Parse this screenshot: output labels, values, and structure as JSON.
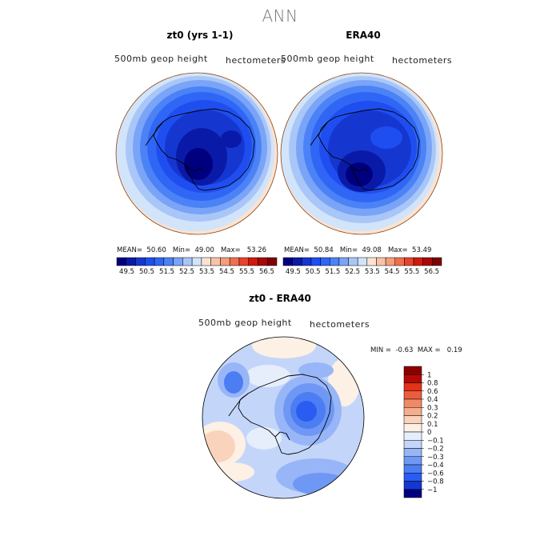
{
  "title": "ANN",
  "palette": {
    "absolute": [
      "#00007f",
      "#0a1aa8",
      "#1537d0",
      "#1f4ef0",
      "#2f66f5",
      "#4b82f6",
      "#7aa4f7",
      "#a9c6f8",
      "#d2e4fa",
      "#fae3d3",
      "#f8c3a6",
      "#f49e7b",
      "#ef6f4e",
      "#e8432a",
      "#d01a0c",
      "#a80808",
      "#7f0000"
    ],
    "difference": [
      "#00007f",
      "#1537d0",
      "#2a5cf2",
      "#4c7df3",
      "#6f98f5",
      "#98b6f7",
      "#c3d6fa",
      "#e6eefc",
      "#fdf0e4",
      "#f9d3bb",
      "#f5ae8b",
      "#f08a66",
      "#eb5d3e",
      "#e23218",
      "#b30a06",
      "#8a0000"
    ],
    "map_edge": "#8b4513"
  },
  "panels": {
    "left": {
      "title": "zt0 (yrs 1-1)",
      "variable": "500mb geop height",
      "units": "hectometers",
      "mean_label": "MEAN=",
      "mean": "50.60",
      "min_label": "Min=",
      "min": "49.00",
      "max_label": "Max=",
      "max": "53.26"
    },
    "right": {
      "title": "ERA40",
      "variable": "500mb geop height",
      "units": "hectometers",
      "mean_label": "MEAN=",
      "mean": "50.84",
      "min_label": "Min=",
      "min": "49.08",
      "max_label": "Max=",
      "max": "53.49"
    },
    "diff": {
      "title": "zt0 - ERA40",
      "variable": "500mb geop height",
      "units": "hectometers",
      "min_label": "MIN =",
      "min": "-0.63",
      "max_label": "MAX =",
      "max": "0.19"
    }
  },
  "chart_data": [
    {
      "type": "heatmap",
      "title": "zt0 (yrs 1-1)",
      "projection": "south polar stereographic",
      "variable": "500mb geop height",
      "units": "hectometers",
      "stats": {
        "mean": 50.6,
        "min": 49.0,
        "max": 53.26
      },
      "colorbar_ticks": [
        "49.5",
        "50.5",
        "51.5",
        "52.5",
        "53.5",
        "54.5",
        "55.5",
        "56.5"
      ],
      "contour_levels": [
        49.5,
        50.0,
        50.5,
        51.0,
        51.5,
        52.0,
        52.5,
        53.0,
        53.5,
        54.0,
        54.5,
        55.0,
        55.5,
        56.0,
        56.5
      ]
    },
    {
      "type": "heatmap",
      "title": "ERA40",
      "projection": "south polar stereographic",
      "variable": "500mb geop height",
      "units": "hectometers",
      "stats": {
        "mean": 50.84,
        "min": 49.08,
        "max": 53.49
      },
      "colorbar_ticks": [
        "49.5",
        "50.5",
        "51.5",
        "52.5",
        "53.5",
        "54.5",
        "55.5",
        "56.5"
      ],
      "contour_levels": [
        49.5,
        50.0,
        50.5,
        51.0,
        51.5,
        52.0,
        52.5,
        53.0,
        53.5,
        54.0,
        54.5,
        55.0,
        55.5,
        56.0,
        56.5
      ]
    },
    {
      "type": "heatmap",
      "title": "zt0 - ERA40",
      "projection": "south polar stereographic",
      "variable": "500mb geop height",
      "units": "hectometers",
      "stats": {
        "min": -0.63,
        "max": 0.19
      },
      "colorbar_ticks": [
        "1",
        "0.8",
        "0.6",
        "0.4",
        "0.3",
        "0.2",
        "0.1",
        "0",
        "−0.1",
        "−0.2",
        "−0.3",
        "−0.4",
        "−0.6",
        "−0.8",
        "−1"
      ],
      "contour_levels": [
        -1,
        -0.8,
        -0.6,
        -0.4,
        -0.3,
        -0.2,
        -0.1,
        0,
        0.1,
        0.2,
        0.3,
        0.4,
        0.6,
        0.8,
        1
      ]
    }
  ]
}
